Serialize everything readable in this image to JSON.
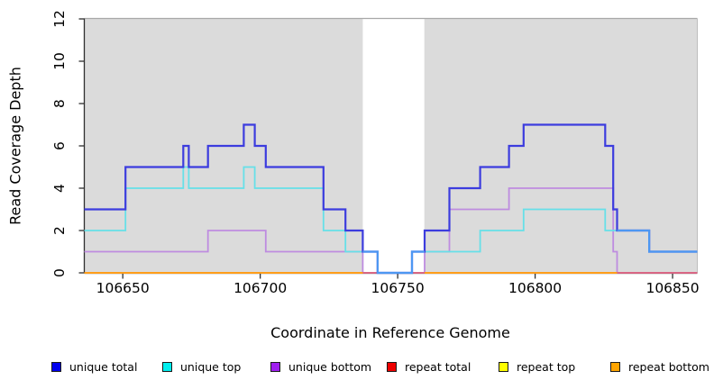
{
  "figure": {
    "x_title": "Coordinate in Reference Genome",
    "y_title": "Read Coverage Depth"
  },
  "chart_data": {
    "type": "line",
    "style": "step",
    "xlabel": "Coordinate in Reference Genome",
    "ylabel": "Read Coverage Depth",
    "xlim": [
      106636,
      106859
    ],
    "ylim": [
      0,
      12
    ],
    "x_ticks": [
      "106650",
      "106700",
      "106750",
      "106800",
      "106850"
    ],
    "x_tick_values": [
      106650,
      106700,
      106750,
      106800,
      106850
    ],
    "y_ticks": [
      "0",
      "2",
      "4",
      "6",
      "8",
      "10",
      "12"
    ],
    "y_tick_values": [
      0,
      2,
      4,
      6,
      8,
      10,
      12
    ],
    "grid": false,
    "plot_background": "#DBDBDB",
    "uncovered_region": {
      "x1": 106737.3,
      "x2": 106759.7,
      "fill": "#FFFFFF"
    },
    "series": [
      {
        "name": "repeat top",
        "color": "#F2F20A",
        "width": 1.5,
        "points": [
          [
            106636,
            0
          ],
          [
            106859,
            0
          ]
        ]
      },
      {
        "name": "unique bottom",
        "color": "#BE8CE0",
        "width": 1.8,
        "points": [
          [
            106636,
            1
          ],
          [
            106681,
            2
          ],
          [
            106702,
            1
          ],
          [
            106737.3,
            0
          ],
          [
            106759.8,
            1
          ],
          [
            106768.8,
            3
          ],
          [
            106790.5,
            4
          ],
          [
            106828.4,
            1
          ],
          [
            106829.8,
            0
          ],
          [
            106859,
            0
          ]
        ]
      },
      {
        "name": "unique top",
        "color": "#66E0E8",
        "width": 1.8,
        "points": [
          [
            106636,
            2
          ],
          [
            106651,
            4
          ],
          [
            106672,
            5
          ],
          [
            106674,
            4
          ],
          [
            106694,
            5
          ],
          [
            106698,
            4
          ],
          [
            106723,
            2
          ],
          [
            106731,
            1
          ],
          [
            106742.7,
            0
          ],
          [
            106755.2,
            1
          ],
          [
            106780,
            2
          ],
          [
            106795.8,
            3
          ],
          [
            106825.5,
            2
          ],
          [
            106841.5,
            1
          ],
          [
            106859,
            1
          ]
        ]
      },
      {
        "name": "repeat total",
        "color": "#E05570",
        "width": 1.5,
        "points": [
          [
            106636,
            0
          ],
          [
            106859,
            0
          ]
        ]
      },
      {
        "name": "unique total",
        "color": "#3C3CDE",
        "width": 2.2,
        "points": [
          [
            106636,
            3
          ],
          [
            106651,
            5
          ],
          [
            106672,
            6
          ],
          [
            106674,
            5
          ],
          [
            106681,
            6
          ],
          [
            106694,
            7
          ],
          [
            106698,
            6
          ],
          [
            106702,
            5
          ],
          [
            106723,
            3
          ],
          [
            106731,
            2
          ],
          [
            106737.3,
            1
          ],
          [
            106742.7,
            0
          ],
          [
            106755.2,
            1
          ],
          [
            106759.8,
            2
          ],
          [
            106768.8,
            4
          ],
          [
            106780,
            5
          ],
          [
            106790.5,
            6
          ],
          [
            106795.8,
            7
          ],
          [
            106825.5,
            6
          ],
          [
            106828.4,
            3
          ],
          [
            106829.8,
            2
          ],
          [
            106841.5,
            1
          ],
          [
            106859,
            1
          ]
        ]
      },
      {
        "name": "repeat bottom",
        "color": "#FF9E1A",
        "width": 2,
        "points": [
          [
            106636,
            0
          ],
          [
            106737.3,
            0
          ],
          null,
          [
            106759.8,
            0
          ],
          [
            106829.8,
            0
          ]
        ]
      }
    ],
    "overlaps": [
      {
        "note": "unique total coincides with unique top",
        "color": "#4D97F2",
        "width": 2.2,
        "points": [
          [
            106737.3,
            1
          ],
          [
            106742.7,
            0
          ],
          [
            106755.2,
            1
          ],
          [
            106759.8,
            1
          ]
        ]
      },
      {
        "note": "unique total coincides with unique top",
        "color": "#4D97F2",
        "width": 2.2,
        "points": [
          [
            106829.8,
            2
          ],
          [
            106841.5,
            1
          ],
          [
            106859,
            1
          ]
        ]
      }
    ],
    "legend_position": "bottom"
  },
  "legend": {
    "items": [
      {
        "label": "unique total",
        "color": "#0000EE"
      },
      {
        "label": "unique top",
        "color": "#00EEEE"
      },
      {
        "label": "unique bottom",
        "color": "#A020F0"
      },
      {
        "label": "repeat total",
        "color": "#EE0000"
      },
      {
        "label": "repeat top",
        "color": "#FFFF00"
      },
      {
        "label": "repeat bottom",
        "color": "#FFA500"
      }
    ]
  }
}
